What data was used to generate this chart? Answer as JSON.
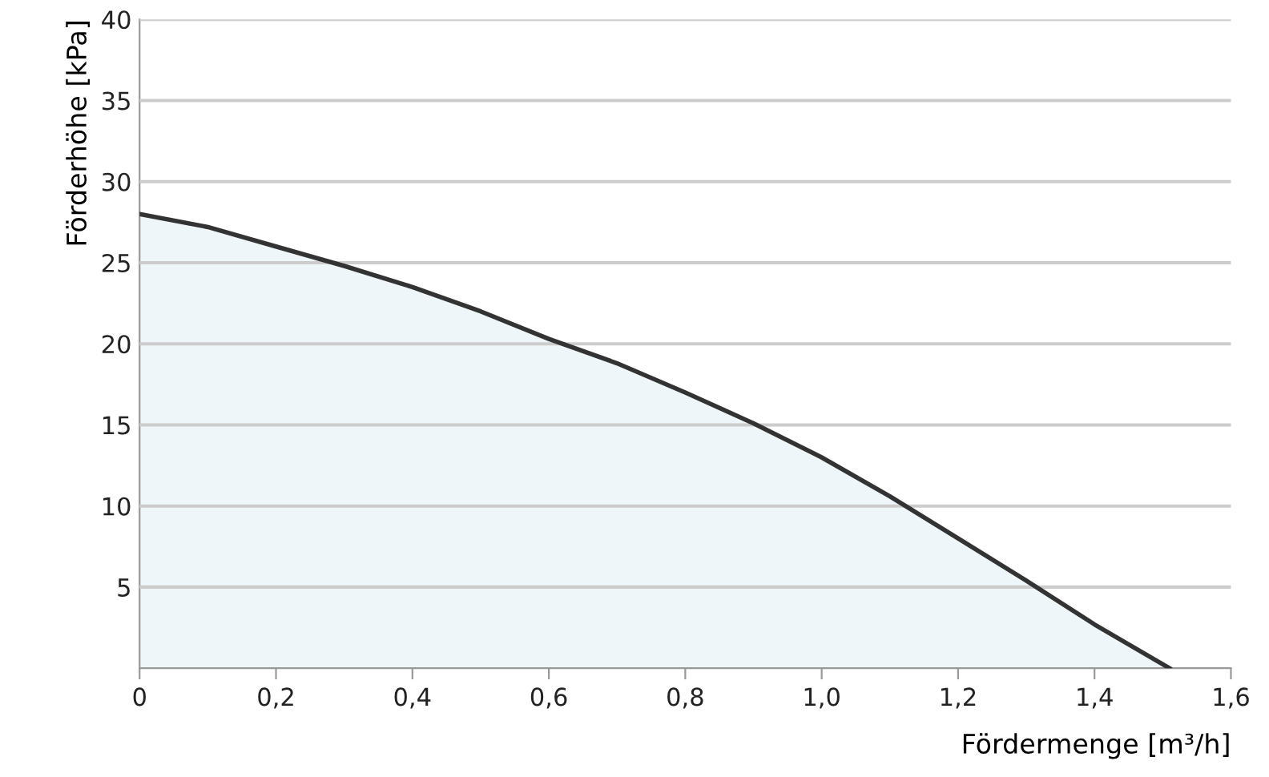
{
  "chart_data": {
    "type": "area",
    "xlabel": "Fördermenge [m³/h]",
    "ylabel": "Förderhöhe [kPa]",
    "x": [
      0,
      0.1,
      0.2,
      0.3,
      0.4,
      0.5,
      0.6,
      0.7,
      0.8,
      0.9,
      1.0,
      1.1,
      1.2,
      1.3,
      1.4,
      1.51
    ],
    "series": [
      {
        "color": "#333333",
        "values": [
          28,
          27.2,
          26,
          24.8,
          23.5,
          22,
          20.3,
          18.8,
          17,
          15.1,
          13,
          10.6,
          8,
          5.4,
          2.7,
          0
        ]
      }
    ],
    "xlim": [
      0,
      1.6
    ],
    "ylim": [
      0,
      40
    ],
    "xticks": [
      0,
      {
        "value": 0.2,
        "label": "0,2"
      },
      {
        "value": 0.4,
        "label": "0,4"
      },
      {
        "value": 0.6,
        "label": "0,6"
      },
      {
        "value": 0.8,
        "label": "0,8"
      },
      {
        "value": 1.0,
        "label": "1,0"
      },
      {
        "value": 1.2,
        "label": "1,2"
      },
      {
        "value": 1.4,
        "label": "1,4"
      },
      {
        "value": 1.6,
        "label": "1,6"
      }
    ],
    "yticks": [
      5,
      10,
      15,
      20,
      25,
      30,
      35,
      40
    ],
    "grid": "y"
  }
}
